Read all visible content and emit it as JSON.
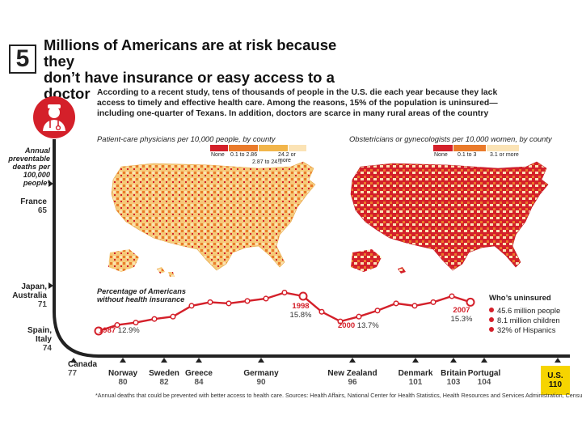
{
  "header": {
    "number": "5",
    "title": "Millions of Americans are at risk because they\ndon’t have insurance or easy access to a doctor"
  },
  "intro": "According to a recent study, tens of thousands of people in the U.S. die each year because they lack access to timely and effective health care. Among the reasons, 15% of the population is uninsured— including one-quarter of Texans. In addition, doctors are scarce in many rural areas of the country",
  "icon": {
    "name": "doctor-icon"
  },
  "maps": [
    {
      "label": "Patient-care physicians per 10,000 people, by county",
      "legend": [
        {
          "label": "None",
          "color": "#d4202a"
        },
        {
          "label": "0.1 to 2.86",
          "color": "#ea7a2a"
        },
        {
          "label": "2.87 to 24.1",
          "color": "#f2b54a"
        },
        {
          "label": "24.2 or more",
          "color": "#fbe3b5"
        }
      ]
    },
    {
      "label": "Obstetricians or gynecologists per 10,000 women, by county",
      "legend": [
        {
          "label": "None",
          "color": "#d4202a"
        },
        {
          "label": "0.1 to 3",
          "color": "#ea7a2a"
        },
        {
          "label": "3.1 or more",
          "color": "#fbe3b5"
        }
      ]
    }
  ],
  "left_axis": {
    "label": "Annual preventable deaths per 100,000 people*",
    "countries": [
      {
        "name": "France",
        "value": "65"
      },
      {
        "name": "Japan, Australia",
        "value": "71"
      },
      {
        "name": "Spain, Italy",
        "value": "74"
      },
      {
        "name": "Canada",
        "value": "77"
      }
    ]
  },
  "bottom_axis": [
    {
      "name": "Norway",
      "value": "80"
    },
    {
      "name": "Sweden",
      "value": "82"
    },
    {
      "name": "Greece",
      "value": "84"
    },
    {
      "name": "Germany",
      "value": "90"
    },
    {
      "name": "New Zealand",
      "value": "96"
    },
    {
      "name": "Denmark",
      "value": "101"
    },
    {
      "name": "Britain",
      "value": "103"
    },
    {
      "name": "Portugal",
      "value": "104"
    }
  ],
  "us_box": {
    "name": "U.S.",
    "value": "110",
    "color": "#f6d400"
  },
  "line_label": "Percentage of Americans without health insurance",
  "annotations": [
    {
      "year": "1987",
      "pct": "12.9%"
    },
    {
      "year": "1998",
      "pct": "15.8%"
    },
    {
      "year": "2000",
      "pct": "13.7%"
    },
    {
      "year": "2007",
      "pct": "15.3%"
    }
  ],
  "who": {
    "title": "Who’s uninsured",
    "items": [
      "45.6 million people",
      "8.1 million children",
      "32% of Hispanics"
    ]
  },
  "footnote": "*Annual deaths that could be prevented with better access to health care. Sources: Health Affairs, National Center for Health Statistics, Health Resources and Services Administration, Census Bureau",
  "colors": {
    "accent": "#d4202a",
    "axis": "#222222",
    "light": "#fbe3b5"
  },
  "chart_data": [
    {
      "type": "line",
      "title": "Percentage of Americans without health insurance",
      "x": [
        1987,
        1988,
        1989,
        1990,
        1991,
        1992,
        1993,
        1994,
        1995,
        1996,
        1997,
        1998,
        1999,
        2000,
        2001,
        2002,
        2003,
        2004,
        2005,
        2006,
        2007
      ],
      "series": [
        {
          "values": [
            12.9,
            13.4,
            13.6,
            13.9,
            14.1,
            15.0,
            15.3,
            15.2,
            15.4,
            15.6,
            16.1,
            15.8,
            14.5,
            13.7,
            14.1,
            14.6,
            15.2,
            15.0,
            15.3,
            15.8,
            15.3
          ]
        }
      ],
      "ylim": [
        12,
        17
      ]
    },
    {
      "type": "bar",
      "title": "Annual preventable deaths per 100,000 people*",
      "categories": [
        "France",
        "Japan, Australia",
        "Spain, Italy",
        "Canada",
        "Norway",
        "Sweden",
        "Greece",
        "Germany",
        "New Zealand",
        "Denmark",
        "Britain",
        "Portugal",
        "U.S."
      ],
      "values": [
        65,
        71,
        74,
        77,
        80,
        82,
        84,
        90,
        96,
        101,
        103,
        104,
        110
      ]
    }
  ]
}
